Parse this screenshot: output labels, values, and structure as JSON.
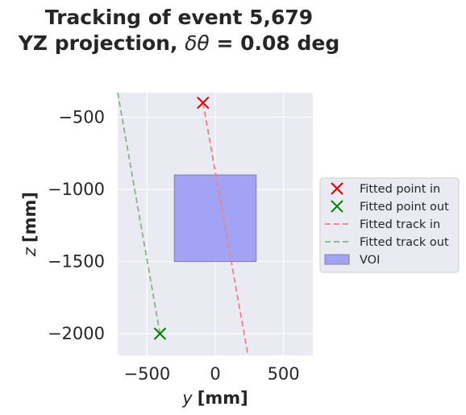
{
  "chart_data": {
    "type": "scatter",
    "title_line1": "Tracking of event 5,679",
    "title_line2_prefix": "YZ projection, ",
    "title_line2_symbol": "δθ",
    "title_line2_suffix": " = 0.08 deg",
    "xlabel_var": "y",
    "xlabel_unit": "[mm]",
    "ylabel_var": "z",
    "ylabel_unit": "[mm]",
    "xlim": [
      -715,
      715
    ],
    "ylim": [
      -2150,
      -330
    ],
    "x_ticks": [
      -500,
      0,
      500
    ],
    "x_tick_labels": [
      "−500",
      "0",
      "500"
    ],
    "y_ticks": [
      -500,
      -1000,
      -1500,
      -2000
    ],
    "y_tick_labels": [
      "−500",
      "−1000",
      "−1500",
      "−2000"
    ],
    "grid": true,
    "legend_position": "right-outside",
    "colors": {
      "background": "#eaeaf2",
      "grid": "#ffffff",
      "fitted_in": "#e00000",
      "fitted_out": "#008000",
      "track_in": "#f08080",
      "track_out": "#80b880",
      "voi_fill": "#a3a3f5",
      "voi_edge": "#8080a0"
    },
    "series": [
      {
        "name": "Fitted point in",
        "kind": "marker",
        "points": [
          [
            -90,
            -400
          ]
        ]
      },
      {
        "name": "Fitted point out",
        "kind": "marker",
        "points": [
          [
            -405,
            -2000
          ]
        ]
      },
      {
        "name": "Fitted track in",
        "kind": "dashed-line",
        "points": [
          [
            -90,
            -400
          ],
          [
            240,
            -2150
          ]
        ]
      },
      {
        "name": "Fitted track out",
        "kind": "dashed-line",
        "points": [
          [
            -715,
            -330
          ],
          [
            -405,
            -2000
          ]
        ]
      },
      {
        "name": "VOI",
        "kind": "rect",
        "y_range": [
          -300,
          300
        ],
        "z_range": [
          -1500,
          -900
        ]
      }
    ]
  }
}
